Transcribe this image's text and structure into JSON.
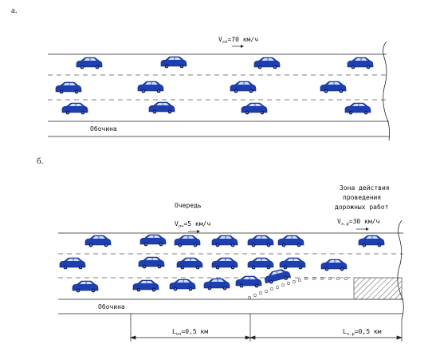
{
  "figure": {
    "panel_a": {
      "label": "а.",
      "speed_label": "V",
      "speed_sub": "сп",
      "speed_value": "=70 км/ч",
      "shoulder": "Обочина"
    },
    "panel_b": {
      "label": "б.",
      "queue_title": "Очередь",
      "queue_speed_label": "V",
      "queue_speed_sub": "оч",
      "queue_speed_value": "=5 км/ч",
      "zone_line1": "Зона действия",
      "zone_line2": "проведения",
      "zone_line3": "дорожных работ",
      "zone_speed_label": "V",
      "zone_speed_sub": "з.р",
      "zone_speed_value": "=30 км/ч",
      "shoulder": "Обочина",
      "len_queue_label": "L",
      "len_queue_sub": "оч",
      "len_queue_value": "=0,5 км",
      "len_zone_label": "L",
      "len_zone_sub": "з.р",
      "len_zone_value": "=0,5 км"
    },
    "colors": {
      "car_body": "#1e3fb0",
      "car_dark": "#0b1f6e",
      "car_window": "#cfe0ff",
      "line": "#222222",
      "dash": "#555555"
    }
  }
}
